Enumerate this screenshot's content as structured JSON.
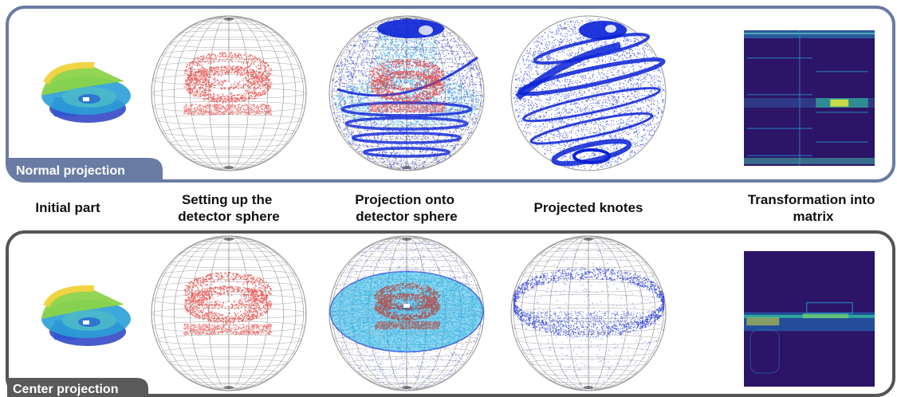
{
  "panels": [
    {
      "id": "normal",
      "label": "Normal projection",
      "frame_color": "#6a7ca3",
      "tag_color": "#6a7ca3"
    },
    {
      "id": "center",
      "label": "Center projection",
      "frame_color": "#555555",
      "tag_color": "#5a5a5a"
    }
  ],
  "steps": [
    {
      "label_lines": [
        "Initial part"
      ]
    },
    {
      "label_lines": [
        "Setting up the",
        "detector sphere"
      ]
    },
    {
      "label_lines": [
        "Projection onto",
        "detector sphere"
      ]
    },
    {
      "label_lines": [
        "Projected knotes"
      ]
    },
    {
      "label_lines": [
        "Transformation into",
        "matrix"
      ]
    }
  ],
  "colors": {
    "part_points": "#e53935",
    "projection_dark": "#0b22d6",
    "projection_light": "#2bb6e6",
    "matrix_background": "#2c1466",
    "matrix_line": "#2a8fc9",
    "matrix_hot": "#d8e23a"
  }
}
